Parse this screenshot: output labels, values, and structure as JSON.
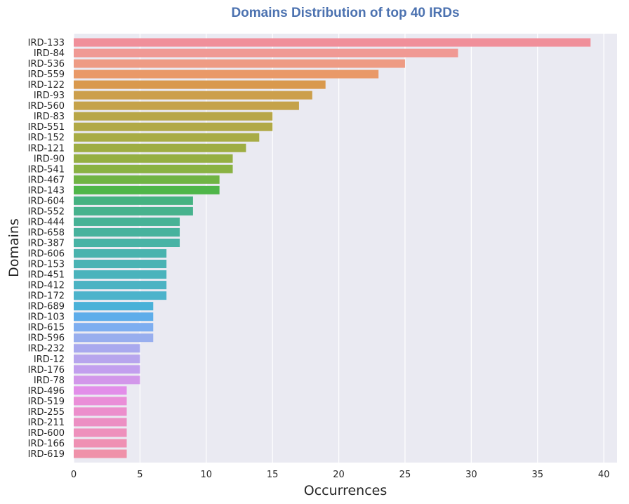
{
  "chart_data": {
    "type": "bar",
    "orientation": "horizontal",
    "title": "Domains Distribution of top 40 IRDs",
    "xlabel": "Occurrences",
    "ylabel": "Domains",
    "xlim": [
      0,
      41
    ],
    "xticks": [
      0,
      5,
      10,
      15,
      20,
      25,
      30,
      35,
      40
    ],
    "grid": true,
    "categories": [
      "IRD-133",
      "IRD-84",
      "IRD-536",
      "IRD-559",
      "IRD-122",
      "IRD-93",
      "IRD-560",
      "IRD-83",
      "IRD-551",
      "IRD-152",
      "IRD-121",
      "IRD-90",
      "IRD-541",
      "IRD-467",
      "IRD-143",
      "IRD-604",
      "IRD-552",
      "IRD-444",
      "IRD-658",
      "IRD-387",
      "IRD-606",
      "IRD-153",
      "IRD-451",
      "IRD-412",
      "IRD-172",
      "IRD-689",
      "IRD-103",
      "IRD-615",
      "IRD-596",
      "IRD-232",
      "IRD-12",
      "IRD-176",
      "IRD-78",
      "IRD-496",
      "IRD-519",
      "IRD-255",
      "IRD-211",
      "IRD-600",
      "IRD-166",
      "IRD-619"
    ],
    "values": [
      39,
      29,
      25,
      23,
      19,
      18,
      17,
      15,
      15,
      14,
      13,
      12,
      12,
      11,
      11,
      9,
      9,
      8,
      8,
      8,
      7,
      7,
      7,
      7,
      7,
      6,
      6,
      6,
      6,
      5,
      5,
      5,
      5,
      4,
      4,
      4,
      4,
      4,
      4,
      4
    ],
    "colors": [
      "#f08f9a",
      "#f09994",
      "#ee9b84",
      "#e99968",
      "#d9994d",
      "#cc9f4c",
      "#c5a24a",
      "#b8a647",
      "#b1a946",
      "#a8ac45",
      "#9ead43",
      "#95af43",
      "#8ab243",
      "#70b444",
      "#4fb649",
      "#45b281",
      "#47b28d",
      "#47b296",
      "#47b29d",
      "#48b3a5",
      "#49b3ae",
      "#4ab3b4",
      "#4ab3bc",
      "#4bb3c3",
      "#4cb3cb",
      "#4ab1d8",
      "#5eadea",
      "#7eaef0",
      "#98aeee",
      "#a9a9ee",
      "#b7a5ed",
      "#c29fee",
      "#d297ea",
      "#e28ee9",
      "#ea8ed8",
      "#ec8ecc",
      "#ec8fc3",
      "#ee90bc",
      "#ef90b3",
      "#ef91a9"
    ]
  },
  "colors": {
    "background": "#ffffff",
    "plot_background": "#eaeaf2",
    "grid": "#ffffff",
    "title": "#4c72b0",
    "text": "#262626"
  }
}
